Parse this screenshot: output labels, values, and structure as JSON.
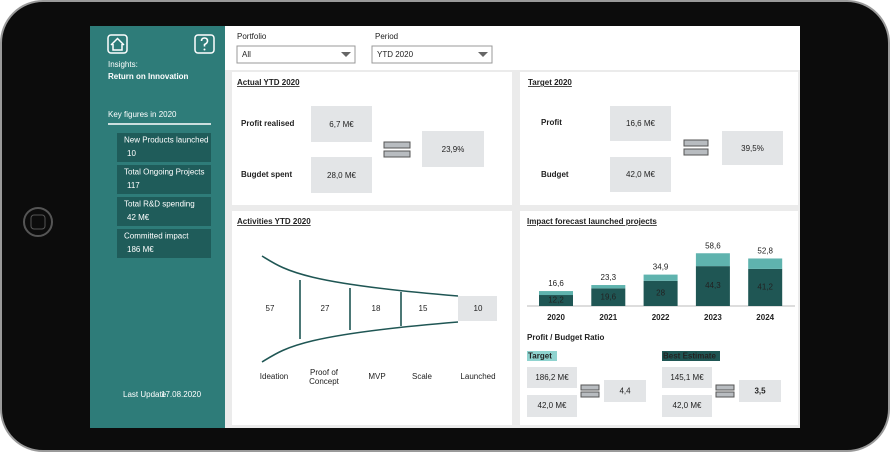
{
  "sidebar": {
    "title_line1": "Insights:",
    "title_line2": "Return on Innovation",
    "key_figures_title": "Key figures in 2020",
    "key_figures": [
      {
        "label": "New Products launched",
        "value": "10"
      },
      {
        "label": "Total Ongoing Projects",
        "value": "117"
      },
      {
        "label": "Total R&D spending",
        "value": "42 M€"
      },
      {
        "label": "Committed impact",
        "value": "186 M€"
      }
    ],
    "last_update_label": "Last Update",
    "last_update": "17.08.2020"
  },
  "filters": [
    {
      "label": "Portfolio",
      "value": "All"
    },
    {
      "label": "Period",
      "value": "YTD 2020"
    }
  ],
  "actual": {
    "title": "Actual YTD 2020",
    "profit_label": "Profit realised",
    "profit": "6,7 M€",
    "budget_label": "Bugdet spent",
    "budget": "28,0 M€",
    "ratio": "23,9%"
  },
  "target": {
    "title": "Target 2020",
    "profit_label": "Profit",
    "profit": "16,6 M€",
    "budget_label": "Budget",
    "budget": "42,0 M€",
    "ratio": "39,5%"
  },
  "activities": {
    "title": "Activities YTD 2020",
    "stages": [
      {
        "label": "Ideation",
        "value": "57"
      },
      {
        "label": "Proof of",
        "label2": "Concept",
        "value": "27"
      },
      {
        "label": "MVP",
        "value": "18"
      },
      {
        "label": "Scale",
        "value": "15"
      },
      {
        "label": "Launched",
        "value": "10"
      }
    ]
  },
  "chart_data": {
    "type": "bar",
    "stacked": true,
    "title": "Impact forecast launched projects",
    "categories": [
      "2020",
      "2021",
      "2022",
      "2023",
      "2024"
    ],
    "series": [
      {
        "color": "#1f5654",
        "values": [
          12.2,
          19.6,
          28,
          44.3,
          41.2
        ],
        "value_labels": [
          "12,2",
          "19,6",
          "28",
          "44,3",
          "41,2"
        ]
      },
      {
        "color": "#5fb3ae",
        "values": [
          4.4,
          3.7,
          6.9,
          14.3,
          11.6
        ]
      }
    ],
    "totals": [
      16.6,
      23.3,
      34.9,
      58.6,
      52.8
    ],
    "total_labels": [
      "16,6",
      "23,3",
      "34,9",
      "58,6",
      "52,8"
    ],
    "ylim": [
      0,
      60
    ]
  },
  "ratio": {
    "title": "Profit / Budget Ratio",
    "target": {
      "label": "Target",
      "profit": "186,2 M€",
      "budget": "42,0 M€",
      "ratio": "4,4"
    },
    "best_estimate": {
      "label": "Best Estimate",
      "profit": "145,1 M€",
      "budget": "42,0 M€",
      "ratio": "3,5"
    }
  }
}
